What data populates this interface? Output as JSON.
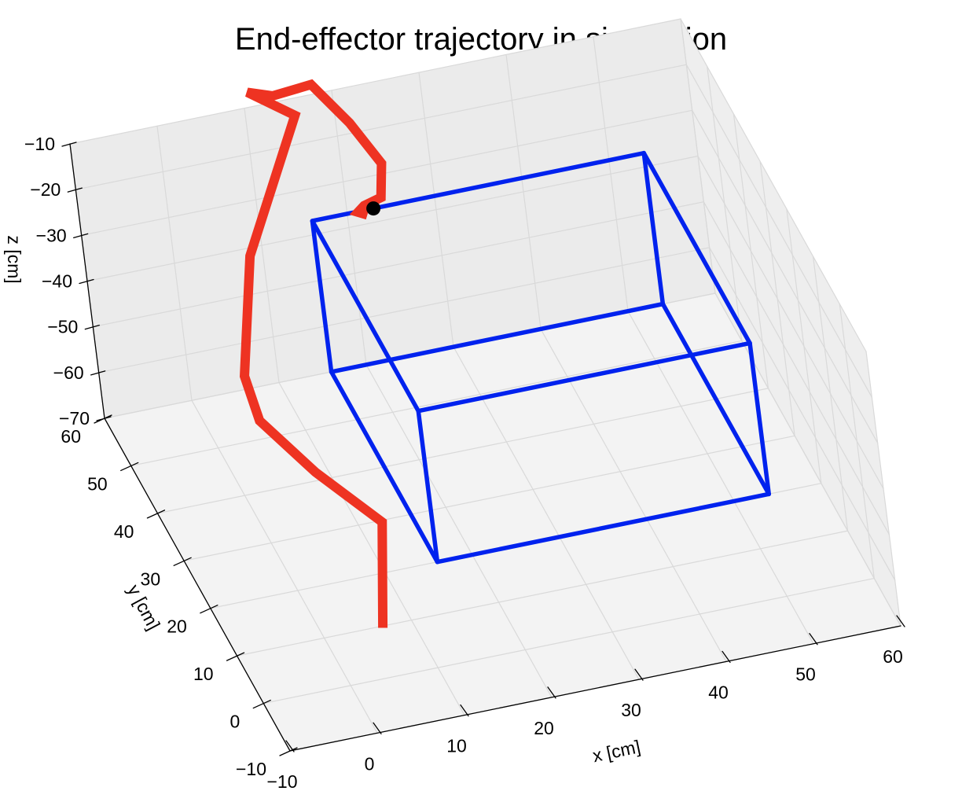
{
  "chart_data": {
    "type": "line3d",
    "title": "End-effector trajectory in simulation",
    "xlabel": "x [cm]",
    "ylabel": "y [cm]",
    "zlabel": "z [cm]",
    "xlim": [
      -10,
      60
    ],
    "ylim": [
      -10,
      60
    ],
    "zlim": [
      -70,
      -10
    ],
    "x_ticks": [
      -10,
      0,
      10,
      20,
      30,
      40,
      50,
      60
    ],
    "y_ticks": [
      -10,
      0,
      10,
      20,
      30,
      40,
      50,
      60
    ],
    "z_ticks": [
      -10,
      -20,
      -30,
      -40,
      -50,
      -60,
      -70
    ],
    "grid": true,
    "series": [
      {
        "kind": "trajectory",
        "color": "#ee3322",
        "points": [
          [
            6,
            7,
            -67
          ],
          [
            12,
            27,
            -67
          ],
          [
            8,
            39,
            -67
          ],
          [
            5,
            50,
            -66
          ],
          [
            6,
            59,
            -66
          ],
          [
            9,
            62,
            -44
          ],
          [
            16,
            62,
            -16
          ],
          [
            11,
            62,
            -9
          ],
          [
            14,
            63,
            -12
          ],
          [
            18,
            61,
            -9
          ],
          [
            22,
            62,
            -20
          ],
          [
            25,
            62,
            -30
          ],
          [
            24,
            60,
            -35
          ],
          [
            22,
            60,
            -36
          ],
          [
            21,
            59,
            -36
          ],
          [
            22,
            59,
            -37
          ]
        ]
      },
      {
        "kind": "box",
        "color": "#0022ee",
        "edges": [
          [
            [
              16,
              20,
              -70
            ],
            [
              54,
              20,
              -70
            ]
          ],
          [
            [
              16,
              20,
              -70
            ],
            [
              16,
              60,
              -70
            ]
          ],
          [
            [
              54,
              20,
              -70
            ],
            [
              54,
              60,
              -70
            ]
          ],
          [
            [
              16,
              60,
              -70
            ],
            [
              54,
              60,
              -70
            ]
          ],
          [
            [
              16,
              20,
              -70
            ],
            [
              16,
              20,
              -37
            ]
          ],
          [
            [
              54,
              20,
              -70
            ],
            [
              54,
              20,
              -37
            ]
          ],
          [
            [
              16,
              60,
              -70
            ],
            [
              16,
              60,
              -37
            ]
          ],
          [
            [
              54,
              60,
              -70
            ],
            [
              54,
              60,
              -37
            ]
          ],
          [
            [
              16,
              20,
              -37
            ],
            [
              54,
              20,
              -37
            ]
          ],
          [
            [
              16,
              20,
              -37
            ],
            [
              16,
              60,
              -37
            ]
          ],
          [
            [
              54,
              20,
              -37
            ],
            [
              54,
              60,
              -37
            ]
          ],
          [
            [
              16,
              60,
              -37
            ],
            [
              54,
              60,
              -37
            ]
          ]
        ]
      },
      {
        "kind": "marker",
        "color": "#000000",
        "point": [
          23,
          60,
          -37
        ]
      }
    ]
  }
}
